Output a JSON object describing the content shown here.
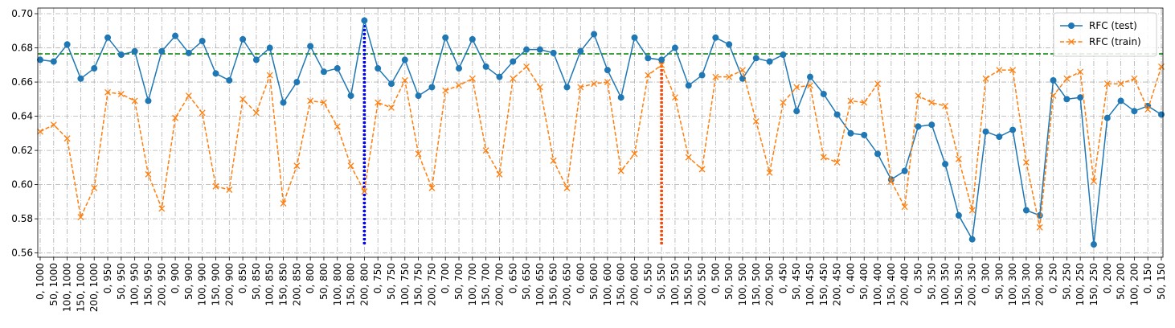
{
  "chart_data": {
    "type": "line",
    "categories": [
      "0, 1000",
      "50, 1000",
      "100, 1000",
      "150, 1000",
      "200, 1000",
      "0, 950",
      "50, 950",
      "100, 950",
      "150, 950",
      "200, 950",
      "0, 900",
      "50, 900",
      "100, 900",
      "150, 900",
      "200, 900",
      "0, 850",
      "50, 850",
      "100, 850",
      "150, 850",
      "200, 850",
      "0, 800",
      "50, 800",
      "100, 800",
      "150, 800",
      "200, 800",
      "0, 750",
      "50, 750",
      "100, 750",
      "150, 750",
      "200, 750",
      "0, 700",
      "50, 700",
      "100, 700",
      "150, 700",
      "200, 700",
      "0, 650",
      "50, 650",
      "100, 650",
      "150, 650",
      "200, 650",
      "0, 600",
      "50, 600",
      "100, 600",
      "150, 600",
      "200, 600",
      "0, 550",
      "50, 550",
      "100, 550",
      "150, 550",
      "200, 550",
      "0, 500",
      "50, 500",
      "100, 500",
      "150, 500",
      "200, 500",
      "0, 450",
      "50, 450",
      "100, 450",
      "150, 450",
      "200, 450",
      "0, 400",
      "50, 400",
      "100, 400",
      "150, 400",
      "200, 400",
      "0, 350",
      "50, 350",
      "100, 350",
      "150, 350",
      "200, 350",
      "0, 300",
      "50, 300",
      "100, 300",
      "150, 300",
      "200, 300",
      "0, 250",
      "50, 250",
      "100, 250",
      "150, 250",
      "0, 200",
      "50, 200",
      "100, 200",
      "0, 150",
      "50, 150"
    ],
    "series": [
      {
        "name": "RFC (test)",
        "color": "#1f77b4",
        "marker": "o",
        "dash": "solid",
        "values": [
          0.673,
          0.672,
          0.682,
          0.662,
          0.668,
          0.686,
          0.676,
          0.678,
          0.649,
          0.678,
          0.687,
          0.677,
          0.684,
          0.665,
          0.661,
          0.685,
          0.673,
          0.68,
          0.648,
          0.66,
          0.681,
          0.666,
          0.668,
          0.652,
          0.696,
          0.668,
          0.659,
          0.673,
          0.652,
          0.657,
          0.686,
          0.668,
          0.685,
          0.669,
          0.663,
          0.672,
          0.679,
          0.679,
          0.677,
          0.657,
          0.678,
          0.688,
          0.667,
          0.651,
          0.686,
          0.674,
          0.673,
          0.68,
          0.658,
          0.664,
          0.686,
          0.682,
          0.662,
          0.674,
          0.672,
          0.676,
          0.643,
          0.663,
          0.653,
          0.641,
          0.63,
          0.629,
          0.618,
          0.603,
          0.608,
          0.634,
          0.635,
          0.612,
          0.582,
          0.568,
          0.631,
          0.628,
          0.632,
          0.585,
          0.582,
          0.661,
          0.65,
          0.651,
          0.565,
          0.639,
          0.649,
          0.643,
          0.646,
          0.641
        ]
      },
      {
        "name": "RFC (train)",
        "color": "#ff7f0e",
        "marker": "x",
        "dash": "dashed",
        "values": [
          0.631,
          0.635,
          0.627,
          0.581,
          0.598,
          0.654,
          0.653,
          0.649,
          0.606,
          0.586,
          0.639,
          0.652,
          0.642,
          0.599,
          0.597,
          0.65,
          0.642,
          0.664,
          0.589,
          0.611,
          0.649,
          0.648,
          0.634,
          0.611,
          0.596,
          0.648,
          0.645,
          0.661,
          0.618,
          0.598,
          0.655,
          0.658,
          0.662,
          0.62,
          0.606,
          0.662,
          0.669,
          0.657,
          0.614,
          0.598,
          0.657,
          0.659,
          0.66,
          0.608,
          0.618,
          0.664,
          0.67,
          0.651,
          0.616,
          0.609,
          0.663,
          0.663,
          0.667,
          0.637,
          0.607,
          0.648,
          0.657,
          0.658,
          0.616,
          0.613,
          0.649,
          0.648,
          0.659,
          0.602,
          0.587,
          0.652,
          0.648,
          0.646,
          0.615,
          0.585,
          0.662,
          0.667,
          0.667,
          0.613,
          0.575,
          0.652,
          0.662,
          0.666,
          0.602,
          0.659,
          0.659,
          0.662,
          0.644,
          0.669
        ]
      }
    ],
    "hline": {
      "value": 0.6765,
      "color": "#008000"
    },
    "vlines": [
      {
        "category": "200, 800",
        "ymin": 0.565,
        "ymax": 0.696,
        "color": "#0000ff"
      },
      {
        "category": "50, 550",
        "ymin": 0.565,
        "ymax": 0.673,
        "color": "#ff4500"
      }
    ],
    "ylim": [
      0.5575,
      0.7033
    ],
    "yticks": [
      0.56,
      0.58,
      {
        "value": 0.6,
        "label": "0.60"
      },
      0.62,
      0.64,
      0.66,
      0.68,
      {
        "value": 0.7,
        "label": "0.70"
      }
    ],
    "grid": true,
    "legend": "upper right"
  }
}
